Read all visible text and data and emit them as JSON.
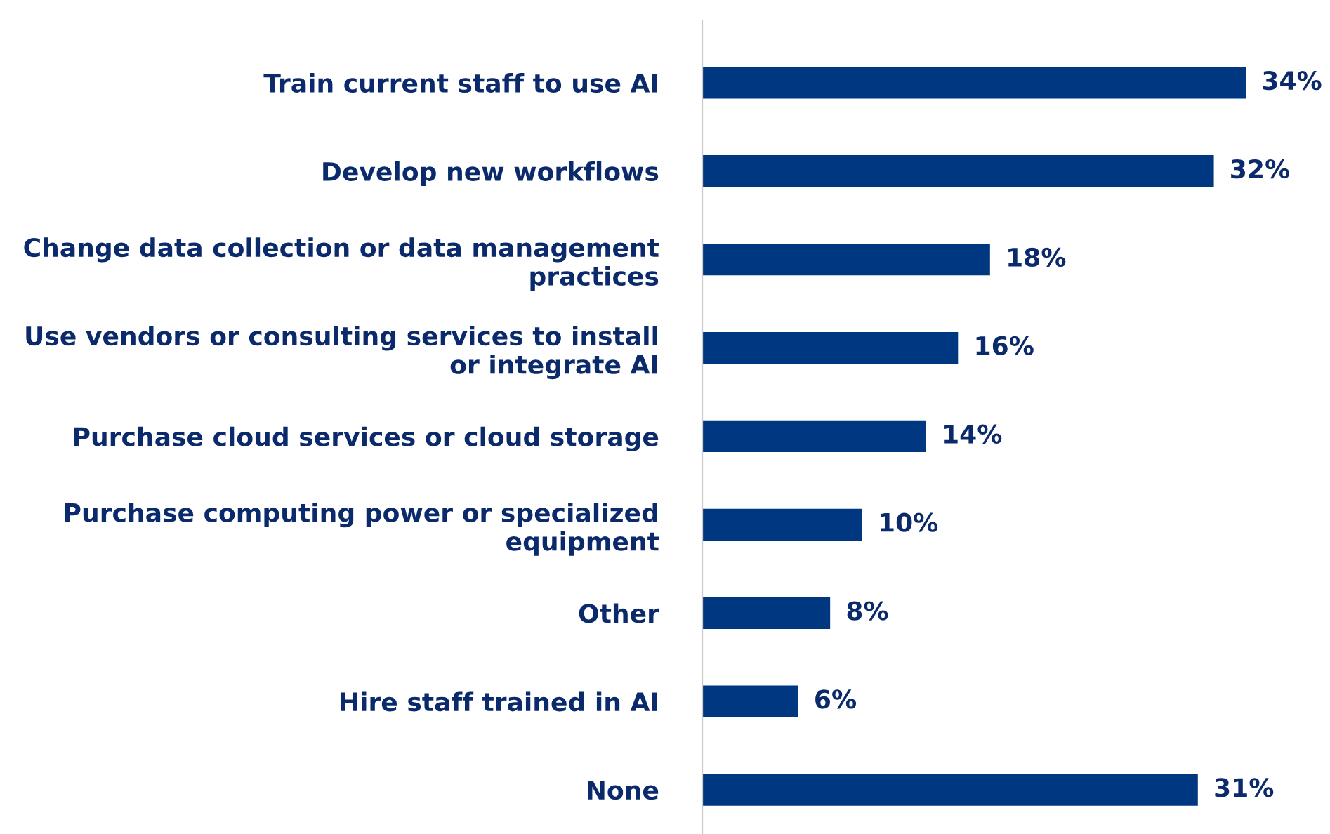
{
  "chart_data": {
    "type": "bar",
    "orientation": "horizontal",
    "categories": [
      "Train current staff to use AI",
      "Develop new workflows",
      "Change data collection or data management practices",
      "Use vendors or consulting services to install or integrate AI",
      "Purchase cloud services or cloud storage",
      "Purchase computing power or specialized equipment",
      "Other",
      "Hire staff trained in AI",
      "None"
    ],
    "values": [
      34,
      32,
      18,
      16,
      14,
      10,
      8,
      6,
      31
    ],
    "value_labels": [
      "34%",
      "32%",
      "18%",
      "16%",
      "14%",
      "10%",
      "8%",
      "6%",
      "31%"
    ],
    "color": "#003781",
    "grid": false,
    "legend": false,
    "tick_labels": "y"
  }
}
